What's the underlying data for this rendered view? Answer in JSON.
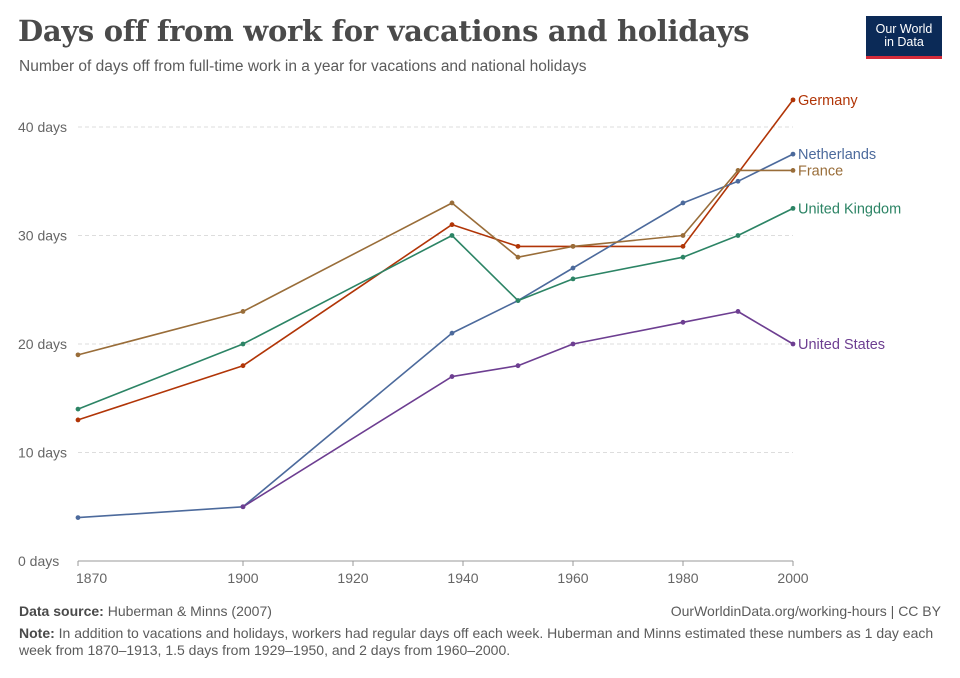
{
  "header": {
    "title": "Days off from work for vacations and holidays",
    "subtitle": "Number of days off from full-time work in a year for vacations and national holidays",
    "logo_line1": "Our World",
    "logo_line2": "in Data"
  },
  "footer": {
    "source_label": "Data source:",
    "source_text": "Huberman & Minns (2007)",
    "url": "OurWorldinData.org/working-hours | CC BY",
    "note_label": "Note:",
    "note_text": "In addition to vacations and holidays, workers had regular days off each week. Huberman and Minns estimated these numbers as 1 day each week from 1870–1913, 1.5 days from 1929–1950, and 2 days from 1960–2000."
  },
  "chart_data": {
    "type": "line",
    "xlim": [
      1870,
      2000
    ],
    "ylim": [
      0,
      40
    ],
    "grid": true,
    "x_ticks": [
      {
        "value": 1870,
        "label": "1870"
      },
      {
        "value": 1900,
        "label": "1900"
      },
      {
        "value": 1920,
        "label": "1920"
      },
      {
        "value": 1940,
        "label": "1940"
      },
      {
        "value": 1960,
        "label": "1960"
      },
      {
        "value": 1980,
        "label": "1980"
      },
      {
        "value": 2000,
        "label": "2000"
      }
    ],
    "y_ticks": [
      {
        "value": 0,
        "label": "0 days"
      },
      {
        "value": 10,
        "label": "10 days"
      },
      {
        "value": 20,
        "label": "20 days"
      },
      {
        "value": 30,
        "label": "30 days"
      },
      {
        "value": 40,
        "label": "40 days"
      }
    ],
    "series": [
      {
        "name": "Germany",
        "color": "#b13507",
        "points": [
          [
            1870,
            13
          ],
          [
            1900,
            18
          ],
          [
            1938,
            31
          ],
          [
            1950,
            29
          ],
          [
            1960,
            29
          ],
          [
            1980,
            29
          ],
          [
            2000,
            42.5
          ]
        ]
      },
      {
        "name": "Netherlands",
        "color": "#4c6a9c",
        "points": [
          [
            1870,
            4
          ],
          [
            1900,
            5
          ],
          [
            1938,
            21
          ],
          [
            1950,
            24
          ],
          [
            1960,
            27
          ],
          [
            1980,
            33
          ],
          [
            1990,
            35
          ],
          [
            2000,
            37.5
          ]
        ]
      },
      {
        "name": "France",
        "color": "#996d39",
        "points": [
          [
            1870,
            19
          ],
          [
            1900,
            23
          ],
          [
            1938,
            33
          ],
          [
            1950,
            28
          ],
          [
            1960,
            29
          ],
          [
            1980,
            30
          ],
          [
            1990,
            36
          ],
          [
            2000,
            36
          ]
        ]
      },
      {
        "name": "United Kingdom",
        "color": "#2c8465",
        "points": [
          [
            1870,
            14
          ],
          [
            1900,
            20
          ],
          [
            1938,
            30
          ],
          [
            1950,
            24
          ],
          [
            1960,
            26
          ],
          [
            1980,
            28
          ],
          [
            1990,
            30
          ],
          [
            2000,
            32.5
          ]
        ]
      },
      {
        "name": "United States",
        "color": "#6d3e91",
        "points": [
          [
            1900,
            5
          ],
          [
            1938,
            17
          ],
          [
            1950,
            18
          ],
          [
            1960,
            20
          ],
          [
            1980,
            22
          ],
          [
            1990,
            23
          ],
          [
            2000,
            20
          ]
        ]
      }
    ]
  }
}
